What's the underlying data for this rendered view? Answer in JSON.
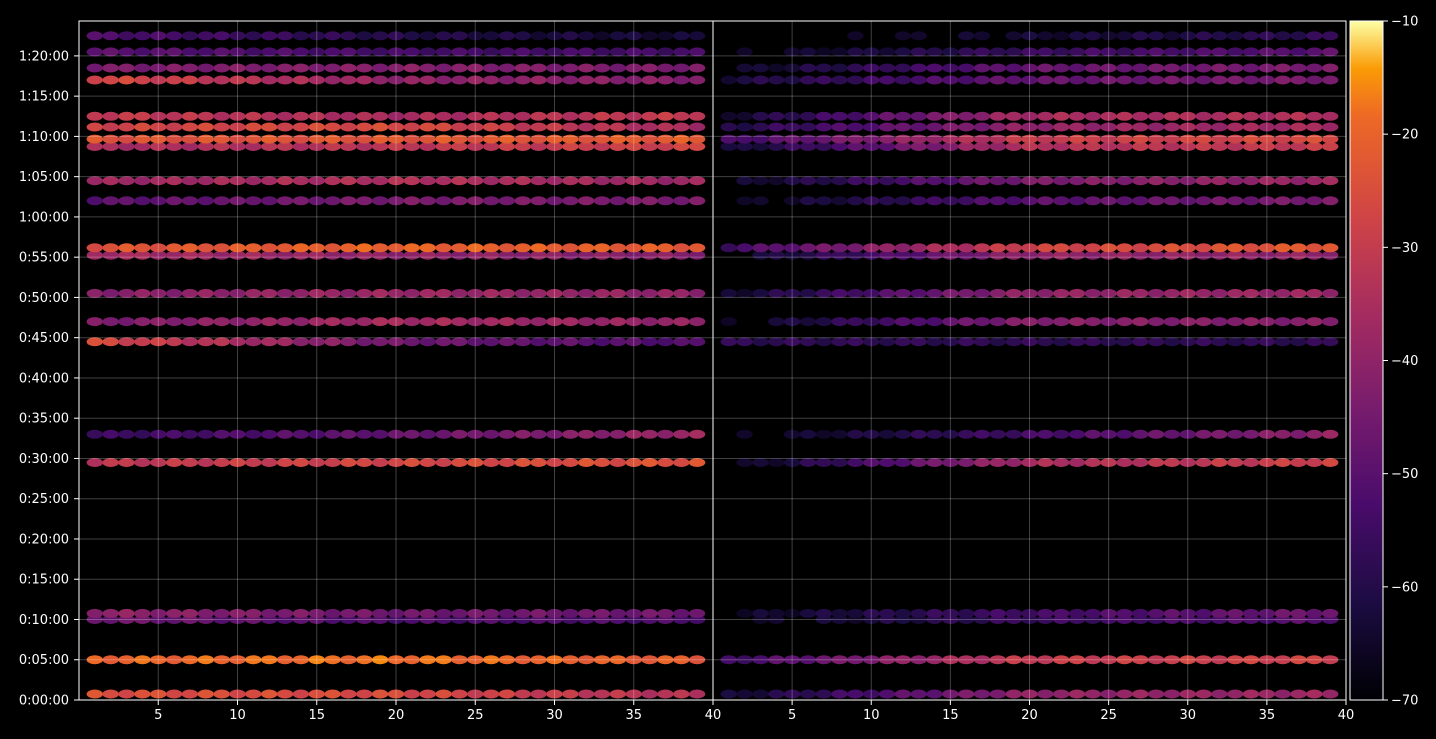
{
  "chart_data": {
    "type": "heatmap",
    "title": "",
    "xlabel": "",
    "ylabel": "",
    "panels": [
      {
        "name": "",
        "xlim": [
          1,
          40
        ],
        "x_ticks": [
          5,
          10,
          15,
          20,
          25,
          30,
          35,
          40
        ]
      },
      {
        "name": "",
        "xlim": [
          1,
          40
        ],
        "x_ticks": [
          5,
          10,
          15,
          20,
          25,
          30,
          35,
          40
        ]
      }
    ],
    "ylim_seconds": [
      0,
      5060
    ],
    "y_tick_labels": [
      "0:00:00",
      "0:05:00",
      "0:10:00",
      "0:15:00",
      "0:20:00",
      "0:25:00",
      "0:30:00",
      "0:35:00",
      "0:40:00",
      "0:45:00",
      "0:50:00",
      "0:55:00",
      "1:00:00",
      "1:05:00",
      "1:10:00",
      "1:15:00",
      "1:20:00"
    ],
    "grid": true,
    "colorbar": {
      "range": [
        -70,
        -10
      ],
      "ticks": [
        "−10",
        "−20",
        "−30",
        "−40",
        "−50",
        "−60",
        "−70"
      ],
      "colormap": "inferno"
    },
    "columns": 39,
    "series": [
      {
        "time": "0:00:45",
        "left": [
          -25,
          -26,
          -34
        ],
        "right": [
          -64,
          -40,
          -38
        ]
      },
      {
        "time": "0:05:00",
        "left": [
          -20,
          -18,
          -22
        ],
        "right": [
          -55,
          -30,
          -28
        ]
      },
      {
        "time": "0:10:00",
        "left": [
          -46,
          -52,
          -52
        ],
        "right": [
          -68,
          -56,
          -50
        ]
      },
      {
        "time": "0:10:45",
        "left": [
          -40,
          -46,
          -46
        ],
        "right": [
          -66,
          -54,
          -46
        ]
      },
      {
        "time": "0:29:30",
        "left": [
          -32,
          -27,
          -24
        ],
        "right": [
          -68,
          -36,
          -28
        ]
      },
      {
        "time": "0:33:00",
        "left": [
          -56,
          -48,
          -38
        ],
        "right": [
          -68,
          -54,
          -40
        ]
      },
      {
        "time": "0:44:30",
        "left": [
          -26,
          -46,
          -52
        ],
        "right": [
          -58,
          -58,
          -58
        ]
      },
      {
        "time": "0:47:00",
        "left": [
          -44,
          -36,
          -40
        ],
        "right": [
          -68,
          -42,
          -42
        ]
      },
      {
        "time": "0:50:30",
        "left": [
          -42,
          -38,
          -40
        ],
        "right": [
          -64,
          -40,
          -38
        ]
      },
      {
        "time": "0:55:15",
        "left": [
          -36,
          -40,
          -42
        ],
        "right": [
          -66,
          -40,
          -40
        ]
      },
      {
        "time": "0:56:10",
        "left": [
          -24,
          -20,
          -22
        ],
        "right": [
          -54,
          -28,
          -22
        ]
      },
      {
        "time": "1:02:00",
        "left": [
          -50,
          -44,
          -44
        ],
        "right": [
          -68,
          -50,
          -44
        ]
      },
      {
        "time": "1:04:30",
        "left": [
          -38,
          -34,
          -38
        ],
        "right": [
          -66,
          -44,
          -38
        ]
      },
      {
        "time": "1:08:45",
        "left": [
          -36,
          -32,
          -28
        ],
        "right": [
          -64,
          -34,
          -30
        ]
      },
      {
        "time": "1:09:40",
        "left": [
          -24,
          -23,
          -22
        ],
        "right": [
          -54,
          -30,
          -26
        ]
      },
      {
        "time": "1:11:10",
        "left": [
          -28,
          -26,
          -36
        ],
        "right": [
          -60,
          -40,
          -36
        ]
      },
      {
        "time": "1:12:30",
        "left": [
          -30,
          -36,
          -30
        ],
        "right": [
          -64,
          -36,
          -34
        ]
      },
      {
        "time": "1:17:00",
        "left": [
          -26,
          -40,
          -42
        ],
        "right": [
          -62,
          -48,
          -44
        ]
      },
      {
        "time": "1:18:30",
        "left": [
          -44,
          -42,
          -44
        ],
        "right": [
          -66,
          -48,
          -44
        ]
      },
      {
        "time": "1:20:30",
        "left": [
          -50,
          -54,
          -54
        ],
        "right": [
          -68,
          -56,
          -50
        ]
      },
      {
        "time": "1:22:30",
        "left": [
          -52,
          -60,
          -64
        ],
        "right": [
          -70,
          -64,
          -58
        ]
      }
    ],
    "note_values": "left/right hold approximate dB level (start, middle, end of the 39 columns) for each band"
  }
}
